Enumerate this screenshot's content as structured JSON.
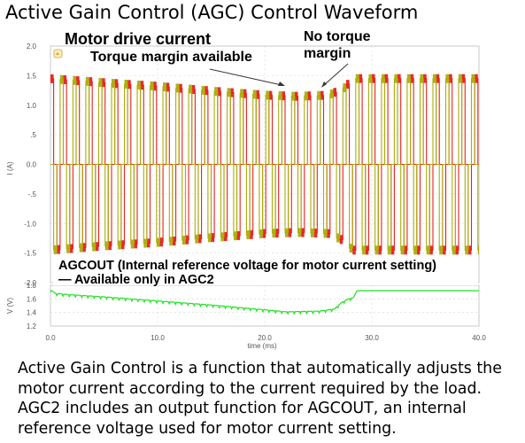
{
  "page": {
    "title": "Active Gain Control (AGC) Control Waveform",
    "caption": "Active Gain Control is a function that automatically adjusts the motor current according to the current required by the load. AGC2 includes an output function for AGCOUT, an internal reference voltage used for motor current setting."
  },
  "colors": {
    "phase_a": "#e8201e",
    "phase_b": "#aaae0a",
    "agcout": "#1fe21f",
    "frame": "#c8c8c8",
    "grid": "#d4d4d4"
  },
  "chart_data": [
    {
      "type": "line",
      "ylabel": "I (A)",
      "ylim": [
        -2.0,
        2.0
      ],
      "xlim": [
        0,
        40
      ],
      "yticks": [
        "2.0",
        "1.5",
        "1.0",
        ".5",
        "0.0",
        "-.5",
        "-1.0",
        "-1.5",
        "-2.0"
      ],
      "grid": true,
      "pwm_period_ms": 1.2,
      "series": [
        {
          "role": "phase current A",
          "color": "#e8201e",
          "amplitude_envelope": {
            "x": [
              0,
              5,
              10,
              15,
              20,
              23,
              26,
              27.5,
              28.2,
              40
            ],
            "y": [
              1.45,
              1.38,
              1.32,
              1.24,
              1.17,
              1.15,
              1.17,
              1.3,
              1.45,
              1.45
            ]
          }
        },
        {
          "role": "phase current B",
          "color": "#aaae0a",
          "amplitude_envelope": {
            "x": [
              0,
              5,
              10,
              15,
              20,
              23,
              26,
              27.5,
              28.2,
              40
            ],
            "y": [
              1.45,
              1.38,
              1.32,
              1.24,
              1.17,
              1.15,
              1.17,
              1.3,
              1.45,
              1.45
            ]
          }
        }
      ],
      "annotations": {
        "motor_drive_current": "Motor drive current",
        "torque_margin": "Torque margin available",
        "no_torque_margin": "No torque\nmargin",
        "agcout_label": "AGCOUT (Internal reference voltage for motor current setting)",
        "agc2_note": "— Available only in AGC2"
      }
    },
    {
      "type": "line",
      "ylabel": "V (V)",
      "ylim": [
        1.2,
        1.8
      ],
      "yticks": [
        "1.8",
        "1.6",
        "1.4",
        "1.2"
      ],
      "xlabel": "time (ms)",
      "xlim": [
        0,
        40
      ],
      "xticks": [
        "0.0",
        "10.0",
        "20.0",
        "30.0",
        "40.0"
      ],
      "grid": true,
      "series": [
        {
          "role": "AGCOUT",
          "color": "#1fe21f",
          "x": [
            0,
            0.5,
            2,
            5,
            10,
            15,
            20,
            22,
            25,
            26.5,
            27.2,
            27.8,
            28.3,
            28.6,
            40
          ],
          "y": [
            1.73,
            1.68,
            1.66,
            1.63,
            1.57,
            1.51,
            1.44,
            1.41,
            1.42,
            1.45,
            1.55,
            1.6,
            1.62,
            1.72,
            1.72
          ]
        }
      ]
    }
  ]
}
